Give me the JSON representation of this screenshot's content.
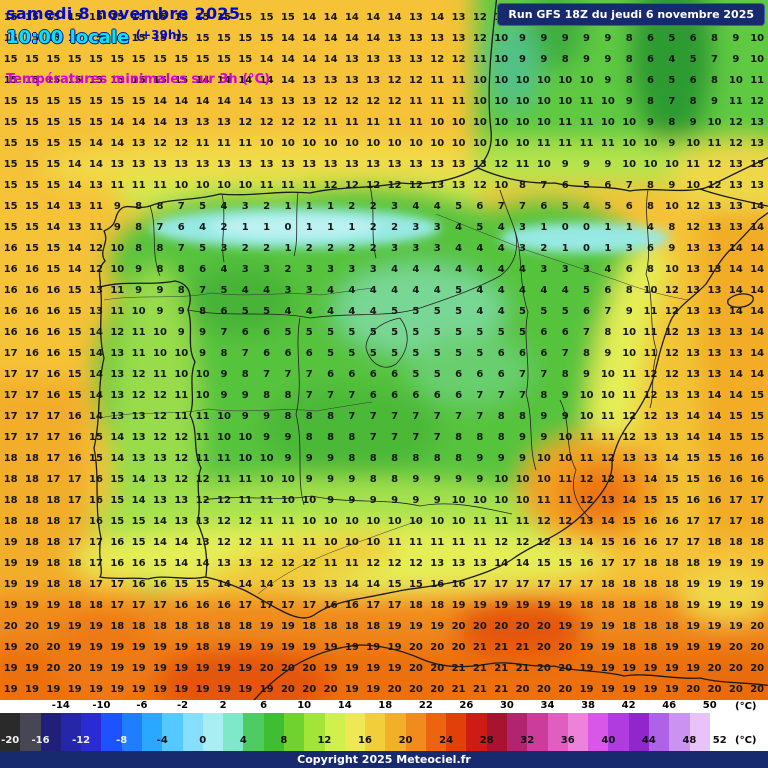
{
  "header": {
    "date": "samedi 8 novembre 2025",
    "time": "10:00 locale",
    "offset": "(+39h)",
    "subtitle": "Températures minimales sur 3h (°C)",
    "run_info": "Run GFS 18Z du jeudi 6 novembre 2025"
  },
  "footer": {
    "copyright": "Copyright 2025 Meteociel.fr"
  },
  "legend": {
    "unit": "(°C)",
    "min": -20,
    "max": 52,
    "step": 2,
    "top_labels": [
      -14,
      -10,
      -6,
      -2,
      2,
      6,
      10,
      14,
      18,
      22,
      26,
      30,
      34,
      38,
      42,
      46,
      50
    ],
    "bottom_labels": [
      -20,
      -16,
      -12,
      -8,
      -4,
      0,
      4,
      8,
      12,
      16,
      20,
      24,
      28,
      32,
      36,
      40,
      44,
      48,
      52
    ],
    "colors": [
      "#2a2a2a",
      "#474754",
      "#20207a",
      "#2626a8",
      "#2b2bd4",
      "#1f52ff",
      "#1e7eff",
      "#2aa8ff",
      "#55c8ff",
      "#86dfff",
      "#a8eef2",
      "#7fe8c8",
      "#4ecb62",
      "#3fbe33",
      "#6fd22e",
      "#a2e438",
      "#cff04d",
      "#eee854",
      "#f2cf3a",
      "#f2b028",
      "#f08c1c",
      "#ec6410",
      "#e2400a",
      "#cc1c14",
      "#a81430",
      "#b02470",
      "#cc3c9a",
      "#e05ec0",
      "#ee82da",
      "#d856e8",
      "#b03ce0",
      "#9026cc",
      "#ae62e8",
      "#cc92f2",
      "#e8c2f8",
      "#ffffff"
    ]
  },
  "grid": {
    "cols": 36,
    "rows": 33,
    "values": [
      "15 15 15 15 15 15 15 15 15 15 15 15 15 15 14 14 14 14 14 13 14 13 12 10 9 9 9 9 8 7 5 5 7 8 9 9",
      "15 15 15 15 15 15 15 15 15 15 15 15 15 14 14 14 14 14 13 13 13 13 12 10 9 9 9 9 9 8 6 5 6 8 9 10",
      "15 15 15 15 15 15 15 15 15 15 15 15 14 14 14 14 13 13 13 13 12 12 11 10 9 9 8 9 9 8 6 4 5 7 9 10",
      "15 15 15 15 15 15 15 15 15 14 14 14 14 14 13 13 13 13 12 12 11 11 10 10 10 10 10 10 9 8 6 5 6 8 10 11",
      "15 15 15 15 15 15 15 14 14 14 14 14 13 13 13 12 12 12 12 11 11 11 10 10 10 10 10 11 10 9 8 7 8 9 11 12",
      "15 15 15 15 15 14 14 14 13 13 13 12 12 12 12 11 11 11 11 11 10 10 10 10 10 10 11 11 10 10 9 8 9 10 12 13",
      "15 15 15 15 14 14 13 12 12 11 11 11 10 10 10 10 10 10 10 10 10 10 10 10 10 11 11 11 11 10 10 9 10 11 12 13",
      "15 15 15 14 14 13 13 13 13 13 13 13 13 13 13 13 13 13 13 13 13 13 13 12 11 10 9 9 9 10 10 10 11 12 13 13",
      "15 15 15 14 13 11 11 11 10 10 10 10 11 11 11 12 12 12 12 12 13 13 12 10 8 7 6 5 6 7 8 9 10 12 13 13",
      "15 15 14 13 11 9 8 8 7 5 4 3 2 1 1 1 2 2 3 4 4 5 6 7 7 6 5 4 5 6 8 10 12 13 13 14",
      "15 15 14 13 11 9 8 7 6 4 2 1 1 0 1 1 1 2 2 3 3 4 5 4 3 1 0 0 1 1 4 8 12 13 13 14",
      "16 15 15 14 12 10 8 8 7 5 3 2 2 1 2 2 2 2 3 3 3 4 4 4 3 2 1 0 1 3 6 9 13 13 14 14",
      "16 16 15 14 12 10 9 8 8 6 4 3 3 2 3 3 3 3 4 4 4 4 4 4 4 3 3 3 4 6 8 10 13 13 14 14",
      "16 16 16 15 13 11 9 9 8 7 5 4 4 3 3 4 4 4 4 4 4 5 4 4 4 4 4 5 6 8 10 12 13 13 14 14",
      "16 16 16 15 13 11 10 9 9 8 6 5 5 4 4 4 4 4 5 5 5 5 4 4 5 5 5 6 7 9 11 12 13 13 14 14",
      "16 16 16 15 14 12 11 10 9 9 7 6 6 5 5 5 5 5 5 5 5 5 5 5 5 6 6 7 8 10 11 12 13 13 13 14",
      "17 16 16 15 14 13 11 10 10 9 8 7 6 6 6 5 5 5 5 5 5 5 5 6 6 6 7 8 9 10 11 12 13 13 13 14",
      "17 17 16 15 14 13 12 11 10 10 9 8 7 7 7 6 6 6 6 5 5 6 6 6 7 7 8 9 10 11 12 12 13 13 14 14",
      "17 17 16 15 14 13 12 12 11 10 9 9 8 8 7 7 7 6 6 6 6 6 7 7 7 8 9 10 10 11 12 13 13 14 14 15",
      "17 17 17 16 14 13 13 12 11 11 10 9 9 8 8 8 7 7 7 7 7 7 7 8 8 9 9 10 11 12 12 13 14 14 15 15",
      "17 17 17 16 15 14 13 12 12 11 10 10 9 9 8 8 8 7 7 7 7 8 8 8 9 9 10 11 11 12 13 13 14 14 15 15",
      "18 18 17 16 15 14 13 13 12 11 11 10 10 9 9 9 8 8 8 8 8 8 9 9 9 10 10 11 12 13 13 14 15 15 16 16",
      "18 18 17 17 16 15 14 13 12 12 11 11 10 10 9 9 9 8 8 9 9 9 9 10 10 10 11 12 12 13 14 15 15 16 16 16",
      "18 18 18 17 16 15 14 13 13 12 12 11 11 10 10 9 9 9 9 9 9 10 10 10 10 11 11 12 13 14 15 15 16 16 17 17",
      "18 18 18 17 16 15 15 14 13 13 12 12 11 11 10 10 10 10 10 10 10 10 11 11 11 12 12 13 14 15 16 16 17 17 17 18",
      "19 18 18 17 17 16 15 14 14 13 12 12 11 11 11 10 10 10 11 11 11 11 11 12 12 12 13 14 15 16 16 17 17 18 18 18",
      "19 19 18 18 17 16 16 15 14 14 13 13 12 12 12 11 11 12 12 12 13 13 13 14 14 15 15 16 17 17 18 18 18 19 19 19",
      "19 19 18 18 17 17 16 16 15 15 14 14 14 13 13 13 14 14 15 15 16 16 17 17 17 17 17 17 18 18 18 18 19 19 19 19",
      "19 19 19 18 18 17 17 17 16 16 16 17 17 17 17 16 16 17 17 18 18 19 19 19 19 19 19 18 18 18 18 18 19 19 19 19",
      "20 20 19 19 19 18 18 18 18 18 18 18 19 19 18 18 18 18 19 19 19 20 20 20 20 20 19 19 19 18 18 18 19 19 19 20",
      "19 20 20 19 19 19 19 19 19 18 19 19 19 19 19 19 19 19 19 20 20 20 21 21 21 20 20 19 19 18 18 19 19 19 20 20",
      "19 19 20 20 19 19 19 19 19 19 19 19 20 20 20 19 19 19 19 20 20 21 21 21 21 20 20 19 19 19 19 19 19 20 20 20",
      "19 19 19 19 19 19 19 19 19 19 19 19 19 20 20 20 19 19 20 20 20 21 21 21 20 20 20 19 19 19 19 19 20 20 20 20"
    ]
  }
}
